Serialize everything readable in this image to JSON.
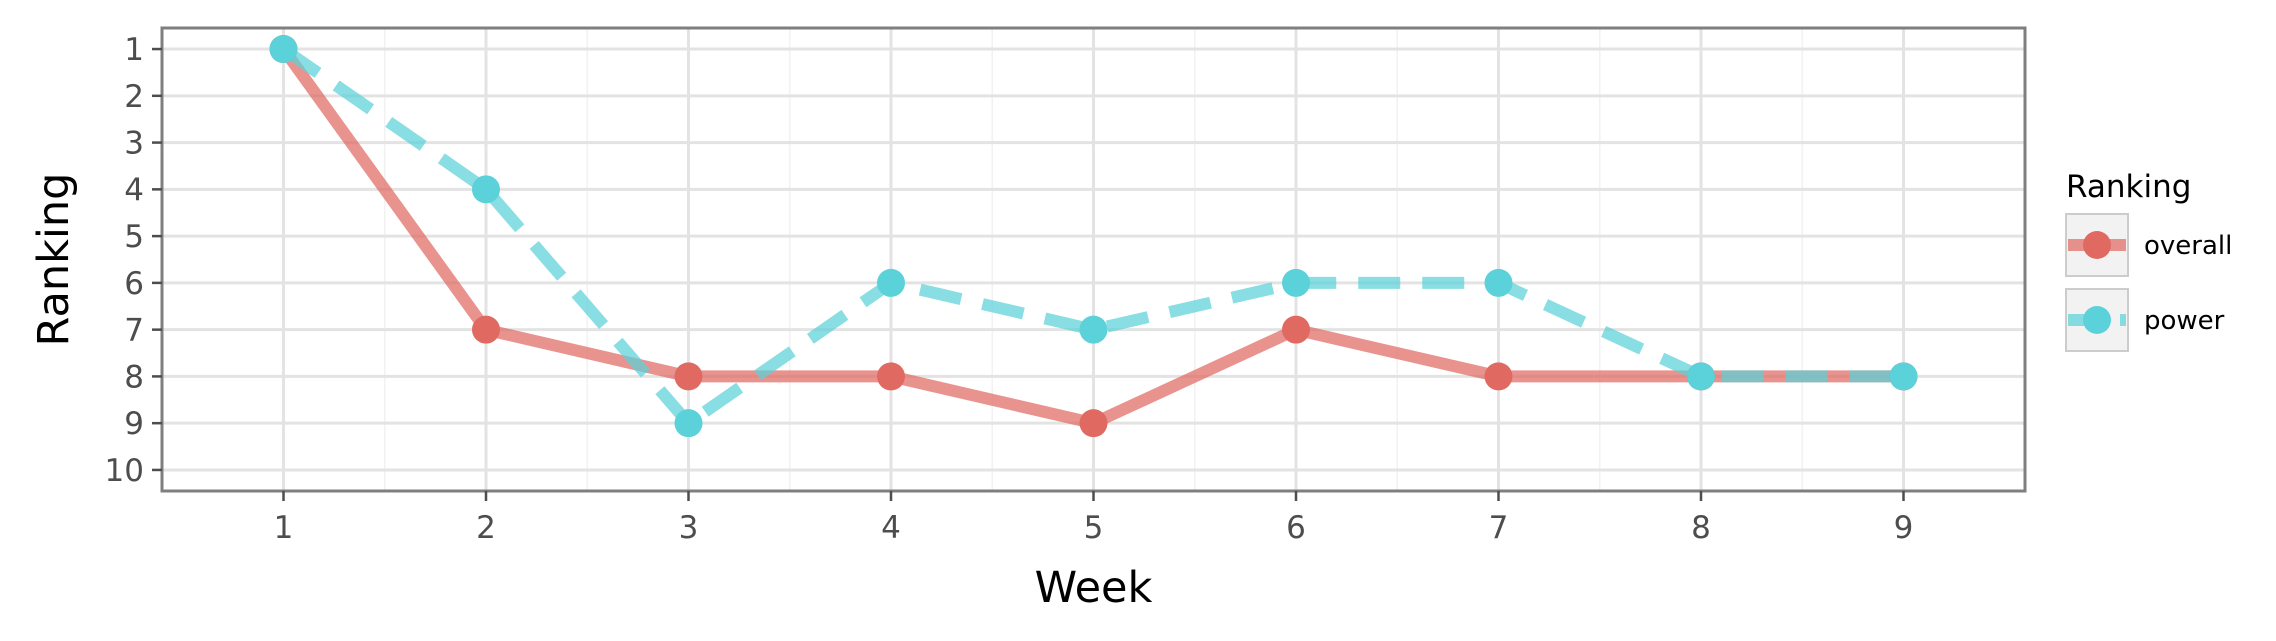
{
  "chart_data": {
    "type": "line",
    "title": "",
    "xlabel": "Week",
    "ylabel": "Ranking",
    "x": [
      1,
      2,
      3,
      4,
      5,
      6,
      7,
      8,
      9
    ],
    "xlim": [
      0.4,
      9.6
    ],
    "ylim": [
      10.45,
      0.55
    ],
    "y_reversed": true,
    "x_ticks": [
      1,
      2,
      3,
      4,
      5,
      6,
      7,
      8,
      9
    ],
    "y_ticks": [
      1,
      2,
      3,
      4,
      5,
      6,
      7,
      8,
      9,
      10
    ],
    "grid": true,
    "legend": {
      "title": "Ranking",
      "position": "right"
    },
    "series": [
      {
        "name": "overall",
        "values": [
          1,
          7,
          8,
          8,
          9,
          7,
          8,
          8,
          8
        ],
        "color": "#e06a62",
        "line_style": "solid"
      },
      {
        "name": "power",
        "values": [
          1,
          4,
          9,
          6,
          7,
          6,
          6,
          8,
          8
        ],
        "color": "#5bd1d9",
        "line_style": "dashed"
      }
    ]
  }
}
